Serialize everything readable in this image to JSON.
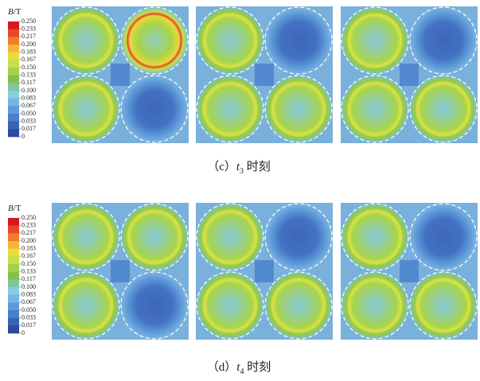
{
  "figures": [
    {
      "colorbar": {
        "title_var": "B",
        "title_unit": "/T",
        "ticks": [
          {
            "value": 0.25,
            "label": "0.250"
          },
          {
            "value": 0.233,
            "label": "0.233"
          },
          {
            "value": 0.217,
            "label": "0.217"
          },
          {
            "value": 0.2,
            "label": "0.200"
          },
          {
            "value": 0.183,
            "label": "0.183"
          },
          {
            "value": 0.167,
            "label": "0.167"
          },
          {
            "value": 0.15,
            "label": "0.150"
          },
          {
            "value": 0.133,
            "label": "0.133"
          },
          {
            "value": 0.117,
            "label": "0.117"
          },
          {
            "value": 0.1,
            "label": "0.100"
          },
          {
            "value": 0.083,
            "label": "0.083"
          },
          {
            "value": 0.067,
            "label": "0.067"
          },
          {
            "value": 0.05,
            "label": "0.050"
          },
          {
            "value": 0.033,
            "label": "0.033"
          },
          {
            "value": 0.017,
            "label": "0.017"
          },
          0
        ]
      },
      "caption": {
        "label": "（c）",
        "var": "t",
        "sub": "3",
        "text": " 时刻"
      }
    },
    {
      "colorbar": {
        "title_var": "B",
        "title_unit": "/T",
        "ticks": [
          {
            "value": 0.25,
            "label": "0.250"
          },
          {
            "value": 0.233,
            "label": "0.233"
          },
          {
            "value": 0.217,
            "label": "0.217"
          },
          {
            "value": 0.2,
            "label": "0.200"
          },
          {
            "value": 0.183,
            "label": "0.183"
          },
          {
            "value": 0.167,
            "label": "0.167"
          },
          {
            "value": 0.15,
            "label": "0.150"
          },
          {
            "value": 0.133,
            "label": "0.133"
          },
          {
            "value": 0.117,
            "label": "0.117"
          },
          {
            "value": 0.1,
            "label": "0.100"
          },
          {
            "value": 0.083,
            "label": "0.083"
          },
          {
            "value": 0.067,
            "label": "0.067"
          },
          {
            "value": 0.05,
            "label": "0.050"
          },
          {
            "value": 0.033,
            "label": "0.033"
          },
          {
            "value": 0.017,
            "label": "0.017"
          },
          0
        ]
      },
      "caption": {
        "label": "（d）",
        "var": "t",
        "sub": "4",
        "text": " 时刻"
      }
    }
  ],
  "colors": [
    "#d7191c",
    "#e8452a",
    "#f07c2c",
    "#f5b43a",
    "#e9dc3c",
    "#c7e04a",
    "#a3d14a",
    "#86c04a",
    "#7cc7a0",
    "#86cde0",
    "#74b6e4",
    "#5f9bd9",
    "#4a7fcb",
    "#3b62b5",
    "#2b4aa0"
  ]
}
